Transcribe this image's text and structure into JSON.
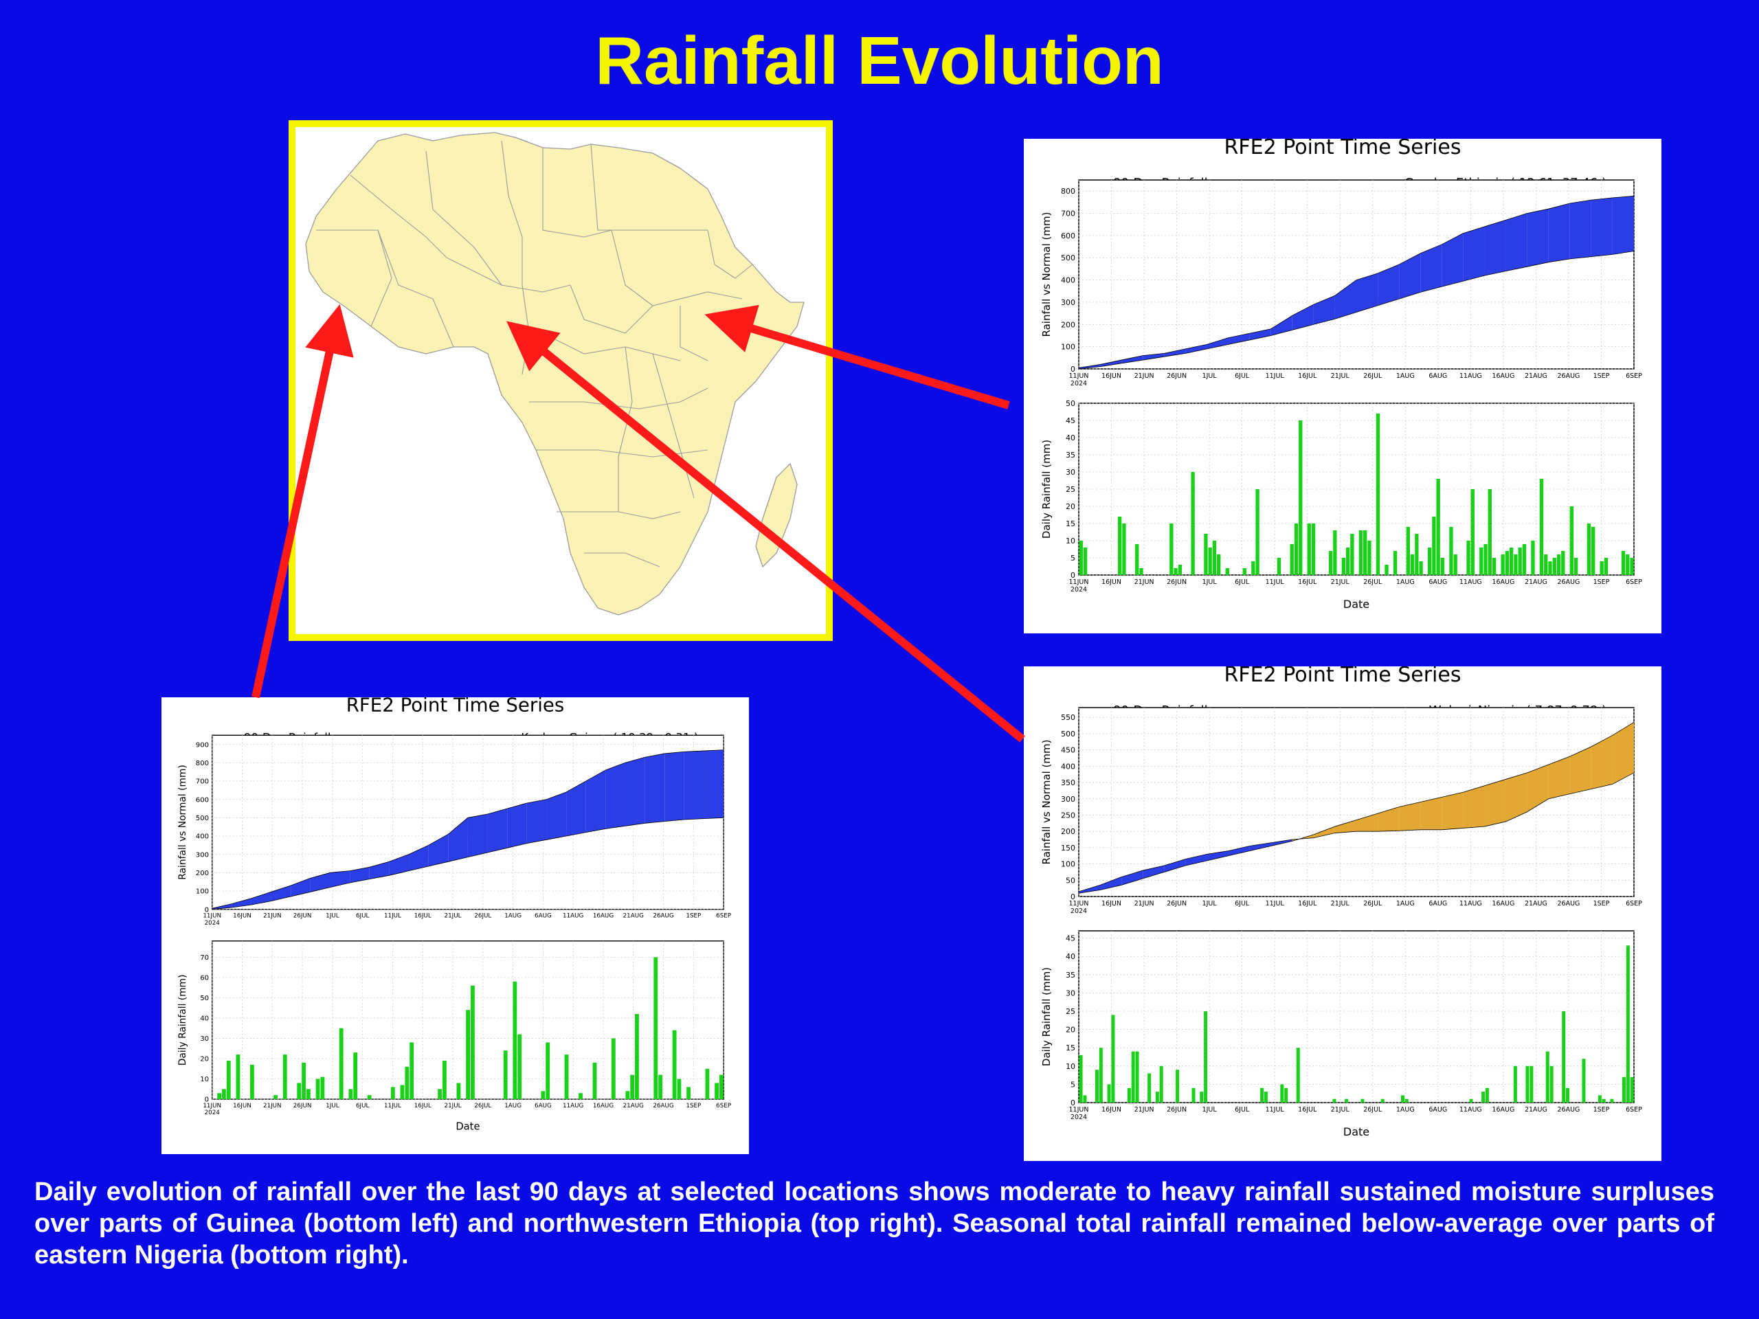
{
  "page": {
    "title": "Rainfall Evolution",
    "caption": "Daily evolution of rainfall over the last 90 days at selected locations shows moderate to heavy rainfall sustained moisture surpluses over parts of Guinea (bottom left) and northwestern Ethiopia (top right). Seasonal total rainfall remained below-average over parts of eastern Nigeria (bottom right).",
    "colors": {
      "background": "#0a0ae6",
      "title": "#f5f500",
      "arrow": "#ff1a1a",
      "surplus": "#2b3ee6",
      "deficit": "#e3a834",
      "daily_bar": "#19d119",
      "land": "#fbf3b6"
    }
  },
  "map": {
    "description_icon": "africa-map"
  },
  "chart_data": [
    {
      "id": "gondar",
      "type": "area",
      "title": "RFE2 Point Time Series",
      "subtitle_left": "90-Day Rainfall",
      "location": "Gondar_Ethiopia ( 12.61, 37.46 )",
      "xlabel": "Date",
      "date_labels": [
        "11JUN\n2024",
        "16JUN",
        "21JUN",
        "26JUN",
        "1JUL",
        "6JUL",
        "11JUL",
        "16JUL",
        "21JUL",
        "26JUL",
        "1AUG",
        "6AUG",
        "11AUG",
        "16AUG",
        "21AUG",
        "26AUG",
        "1SEP",
        "6SEP"
      ],
      "cumulative": {
        "ylabel": "Rainfall vs Normal (mm)",
        "ylim": [
          0,
          850
        ],
        "yticks": [
          0,
          100,
          200,
          300,
          400,
          500,
          600,
          700,
          800
        ],
        "actual": [
          5,
          20,
          40,
          60,
          70,
          90,
          110,
          140,
          160,
          180,
          240,
          290,
          330,
          400,
          430,
          470,
          520,
          560,
          610,
          640,
          670,
          700,
          720,
          745,
          760,
          770,
          778
        ],
        "normal": [
          0,
          10,
          25,
          40,
          55,
          70,
          90,
          110,
          130,
          150,
          175,
          200,
          225,
          255,
          285,
          315,
          345,
          370,
          395,
          420,
          440,
          460,
          480,
          495,
          505,
          515,
          530
        ]
      },
      "daily": {
        "ylabel": "Daily Rainfall (mm)",
        "ylim": [
          0,
          50
        ],
        "yticks": [
          0,
          5,
          10,
          15,
          20,
          25,
          30,
          35,
          40,
          45,
          50
        ],
        "values": [
          10,
          8,
          0,
          0,
          0,
          0,
          0,
          0,
          0,
          17,
          15,
          0,
          0,
          9,
          2,
          0,
          0,
          0,
          0,
          0,
          0,
          15,
          2,
          3,
          0,
          0,
          30,
          0,
          0,
          12,
          8,
          10,
          6,
          0,
          2,
          0,
          0,
          0,
          2,
          0,
          4,
          25,
          0,
          0,
          0,
          0,
          5,
          0,
          0,
          9,
          15,
          45,
          0,
          15,
          15,
          0,
          0,
          0,
          7,
          13,
          0,
          5,
          8,
          12,
          0,
          13,
          13,
          10,
          0,
          47,
          0,
          3,
          0,
          7,
          0,
          0,
          14,
          6,
          12,
          4,
          0,
          8,
          17,
          28,
          5,
          0,
          14,
          6,
          0,
          0,
          10,
          25,
          0,
          8,
          9,
          25,
          5,
          0,
          6,
          7,
          8,
          6,
          8,
          9,
          0,
          10,
          0,
          28,
          6,
          4,
          5,
          6,
          7,
          0,
          20,
          5,
          0,
          0,
          15,
          14,
          0,
          4,
          5,
          0,
          0,
          0,
          7,
          6,
          5
        ]
      }
    },
    {
      "id": "wukari",
      "type": "area",
      "title": "RFE2 Point Time Series",
      "subtitle_left": "90-Day Rainfall",
      "location": "Wukari_Nigeria ( 7.87, 9.78 )",
      "xlabel": "Date",
      "date_labels": [
        "11JUN\n2024",
        "16JUN",
        "21JUN",
        "26JUN",
        "1JUL",
        "6JUL",
        "11JUL",
        "16JUL",
        "21JUL",
        "26JUL",
        "1AUG",
        "6AUG",
        "11AUG",
        "16AUG",
        "21AUG",
        "26AUG",
        "1SEP",
        "6SEP"
      ],
      "cumulative": {
        "ylabel": "Rainfall vs Normal (mm)",
        "ylim": [
          0,
          580
        ],
        "yticks": [
          0,
          50,
          100,
          150,
          200,
          250,
          300,
          350,
          400,
          450,
          500,
          550
        ],
        "actual": [
          15,
          35,
          60,
          80,
          95,
          115,
          130,
          140,
          155,
          165,
          175,
          180,
          195,
          200,
          200,
          202,
          205,
          205,
          210,
          215,
          230,
          260,
          300,
          315,
          330,
          345,
          380
        ],
        "normal": [
          10,
          20,
          35,
          55,
          75,
          95,
          110,
          125,
          140,
          155,
          170,
          190,
          215,
          235,
          255,
          275,
          290,
          305,
          320,
          340,
          360,
          380,
          405,
          430,
          460,
          495,
          535
        ]
      },
      "daily": {
        "ylabel": "Daily Rainfall (mm)",
        "ylim": [
          0,
          47
        ],
        "yticks": [
          0,
          5,
          10,
          15,
          20,
          25,
          30,
          35,
          40,
          45
        ],
        "values": [
          13,
          2,
          0,
          0,
          9,
          15,
          0,
          5,
          24,
          0,
          0,
          0,
          4,
          14,
          14,
          0,
          0,
          8,
          0,
          3,
          10,
          0,
          0,
          0,
          9,
          0,
          0,
          0,
          4,
          0,
          3,
          25,
          0,
          0,
          0,
          0,
          0,
          0,
          0,
          0,
          0,
          0,
          0,
          0,
          0,
          4,
          3,
          0,
          0,
          0,
          5,
          4,
          0,
          0,
          15,
          0,
          0,
          0,
          0,
          0,
          0,
          0,
          0,
          1,
          0,
          0,
          1,
          0,
          0,
          0,
          1,
          0,
          0,
          0,
          0,
          1,
          0,
          0,
          0,
          0,
          2,
          1,
          0,
          0,
          0,
          0,
          0,
          0,
          0,
          0,
          0,
          0,
          0,
          0,
          0,
          0,
          0,
          1,
          0,
          0,
          3,
          4,
          0,
          0,
          0,
          0,
          0,
          0,
          10,
          0,
          0,
          10,
          10,
          0,
          0,
          0,
          14,
          10,
          0,
          0,
          25,
          4,
          0,
          0,
          0,
          12,
          0,
          0,
          0,
          2,
          1,
          0,
          1,
          0,
          0,
          7,
          43,
          7
        ]
      }
    },
    {
      "id": "kankan",
      "type": "area",
      "title": "RFE2 Point Time Series",
      "subtitle_left": "90-Day Rainfall",
      "location": "Kankan_Guinea ( 10.39, -9.31 )",
      "xlabel": "Date",
      "date_labels": [
        "11JUN\n2024",
        "16JUN",
        "21JUN",
        "26JUN",
        "1JUL",
        "6JUL",
        "11JUL",
        "16JUL",
        "21JUL",
        "26JUL",
        "1AUG",
        "6AUG",
        "11AUG",
        "16AUG",
        "21AUG",
        "26AUG",
        "1SEP",
        "6SEP"
      ],
      "cumulative": {
        "ylabel": "Rainfall vs Normal (mm)",
        "ylim": [
          0,
          950
        ],
        "yticks": [
          0,
          100,
          200,
          300,
          400,
          500,
          600,
          700,
          800,
          900
        ],
        "actual": [
          5,
          30,
          60,
          95,
          130,
          170,
          200,
          210,
          230,
          260,
          300,
          350,
          410,
          500,
          520,
          550,
          580,
          600,
          640,
          700,
          760,
          800,
          830,
          850,
          860,
          865,
          870
        ],
        "normal": [
          0,
          10,
          25,
          45,
          70,
          95,
          120,
          145,
          165,
          185,
          210,
          235,
          260,
          285,
          310,
          335,
          360,
          380,
          400,
          420,
          440,
          455,
          470,
          480,
          490,
          495,
          500
        ]
      },
      "daily": {
        "ylabel": "Daily Rainfall (mm)",
        "ylim": [
          0,
          78
        ],
        "yticks": [
          0,
          10,
          20,
          30,
          40,
          50,
          60,
          70
        ],
        "values": [
          0,
          3,
          5,
          19,
          0,
          22,
          0,
          0,
          17,
          0,
          0,
          0,
          0,
          2,
          0,
          22,
          0,
          0,
          8,
          18,
          5,
          0,
          10,
          11,
          0,
          0,
          0,
          35,
          0,
          5,
          23,
          0,
          0,
          2,
          0,
          0,
          0,
          0,
          6,
          0,
          7,
          16,
          28,
          0,
          0,
          0,
          0,
          0,
          5,
          19,
          0,
          0,
          8,
          0,
          44,
          56,
          0,
          0,
          0,
          0,
          0,
          0,
          24,
          0,
          58,
          32,
          0,
          0,
          0,
          0,
          4,
          28,
          0,
          0,
          0,
          22,
          0,
          0,
          3,
          0,
          0,
          18,
          0,
          0,
          0,
          30,
          0,
          0,
          4,
          12,
          42,
          0,
          0,
          0,
          70,
          12,
          0,
          0,
          34,
          10,
          0,
          6,
          0,
          0,
          0,
          15,
          0,
          8,
          12
        ]
      }
    }
  ]
}
